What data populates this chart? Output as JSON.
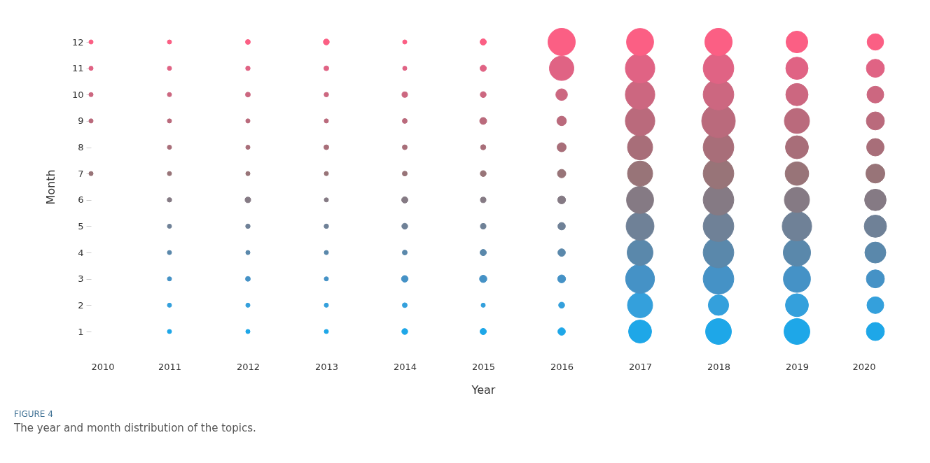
{
  "chart_data": {
    "type": "bubble",
    "title": "FIGURE 4",
    "subtitle": "The year and month distribution of the topics.",
    "xlabel": "Year",
    "ylabel": "Month",
    "x": [
      2010,
      2011,
      2012,
      2013,
      2014,
      2015,
      2016,
      2017,
      2018,
      2019,
      2020
    ],
    "xlim": [
      2010,
      2020
    ],
    "xticks": [
      2010,
      2011,
      2012,
      2013,
      2014,
      2015,
      2016,
      2017,
      2018,
      2019,
      2020
    ],
    "ylim": [
      1,
      12
    ],
    "yticks": [
      1,
      2,
      3,
      4,
      5,
      6,
      7,
      8,
      9,
      10,
      11,
      12
    ],
    "grid": false,
    "legend": false,
    "marker": "circle",
    "series": [
      {
        "color": "#1ea7e8",
        "values": [
          null,
          1,
          1,
          1,
          1,
          1,
          1,
          1,
          1,
          1,
          1
        ],
        "sizes": [
          null,
          0.016,
          0.016,
          0.016,
          0.031,
          0.035,
          0.05,
          0.47,
          0.59,
          0.59,
          0.29
        ]
      },
      {
        "color": "#34a0dc",
        "values": [
          null,
          2,
          2,
          2,
          2,
          2,
          2,
          2,
          2,
          2,
          2
        ],
        "sizes": [
          null,
          0.016,
          0.016,
          0.016,
          0.021,
          0.016,
          0.032,
          0.56,
          0.37,
          0.47,
          0.25
        ]
      },
      {
        "color": "#4592c6",
        "values": [
          null,
          3,
          3,
          3,
          3,
          3,
          3,
          3,
          3,
          3,
          3
        ],
        "sizes": [
          null,
          0.016,
          0.021,
          0.016,
          0.039,
          0.048,
          0.056,
          0.74,
          0.83,
          0.65,
          0.29
        ]
      },
      {
        "color": "#5a88ab",
        "values": [
          null,
          4,
          4,
          4,
          4,
          4,
          4,
          4,
          4,
          4,
          4
        ],
        "sizes": [
          null,
          0.016,
          0.016,
          0.016,
          0.021,
          0.035,
          0.05,
          0.59,
          0.83,
          0.66,
          0.39
        ]
      },
      {
        "color": "#6f8197",
        "values": [
          null,
          5,
          5,
          5,
          5,
          5,
          5,
          5,
          5,
          5,
          5
        ],
        "sizes": [
          null,
          0.016,
          0.018,
          0.018,
          0.031,
          0.028,
          0.05,
          0.69,
          0.83,
          0.77,
          0.44
        ]
      },
      {
        "color": "#857a84",
        "values": [
          null,
          6,
          6,
          6,
          6,
          6,
          6,
          6,
          6,
          6,
          6
        ],
        "sizes": [
          null,
          0.018,
          0.028,
          0.016,
          0.035,
          0.028,
          0.056,
          0.65,
          0.83,
          0.56,
          0.41
        ]
      },
      {
        "color": "#987478",
        "values": [
          7,
          7,
          7,
          7,
          7,
          7,
          7,
          7,
          7,
          7,
          7
        ],
        "sizes": [
          0.016,
          0.016,
          0.016,
          0.016,
          0.021,
          0.031,
          0.063,
          0.56,
          0.83,
          0.49,
          0.32
        ]
      },
      {
        "color": "#a86e79",
        "values": [
          null,
          8,
          8,
          8,
          8,
          8,
          8,
          8,
          8,
          8,
          8
        ],
        "sizes": [
          null,
          0.016,
          0.016,
          0.021,
          0.021,
          0.024,
          0.073,
          0.56,
          0.83,
          0.47,
          0.27
        ]
      },
      {
        "color": "#ba6a7c",
        "values": [
          9,
          9,
          9,
          9,
          9,
          9,
          9,
          9,
          9,
          9,
          9
        ],
        "sizes": [
          0.016,
          0.016,
          0.016,
          0.016,
          0.021,
          0.043,
          0.08,
          0.77,
          1,
          0.56,
          0.29
        ]
      },
      {
        "color": "#cc6780",
        "values": [
          10,
          10,
          10,
          10,
          10,
          10,
          10,
          10,
          10,
          10,
          10
        ],
        "sizes": [
          0.016,
          0.016,
          0.021,
          0.018,
          0.028,
          0.031,
          0.12,
          0.77,
          0.83,
          0.44,
          0.25
        ]
      },
      {
        "color": "#e06384",
        "values": [
          11,
          11,
          11,
          11,
          11,
          11,
          11,
          11,
          11,
          11,
          11
        ],
        "sizes": [
          0.016,
          0.016,
          0.018,
          0.021,
          0.016,
          0.035,
          0.53,
          0.77,
          0.83,
          0.44,
          0.29
        ]
      },
      {
        "color": "#fb5f84",
        "values": [
          12,
          12,
          12,
          12,
          12,
          12,
          12,
          12,
          12,
          12,
          12
        ],
        "sizes": [
          0.016,
          0.016,
          0.021,
          0.031,
          0.016,
          0.035,
          0.66,
          0.65,
          0.66,
          0.42,
          0.24
        ]
      }
    ]
  }
}
